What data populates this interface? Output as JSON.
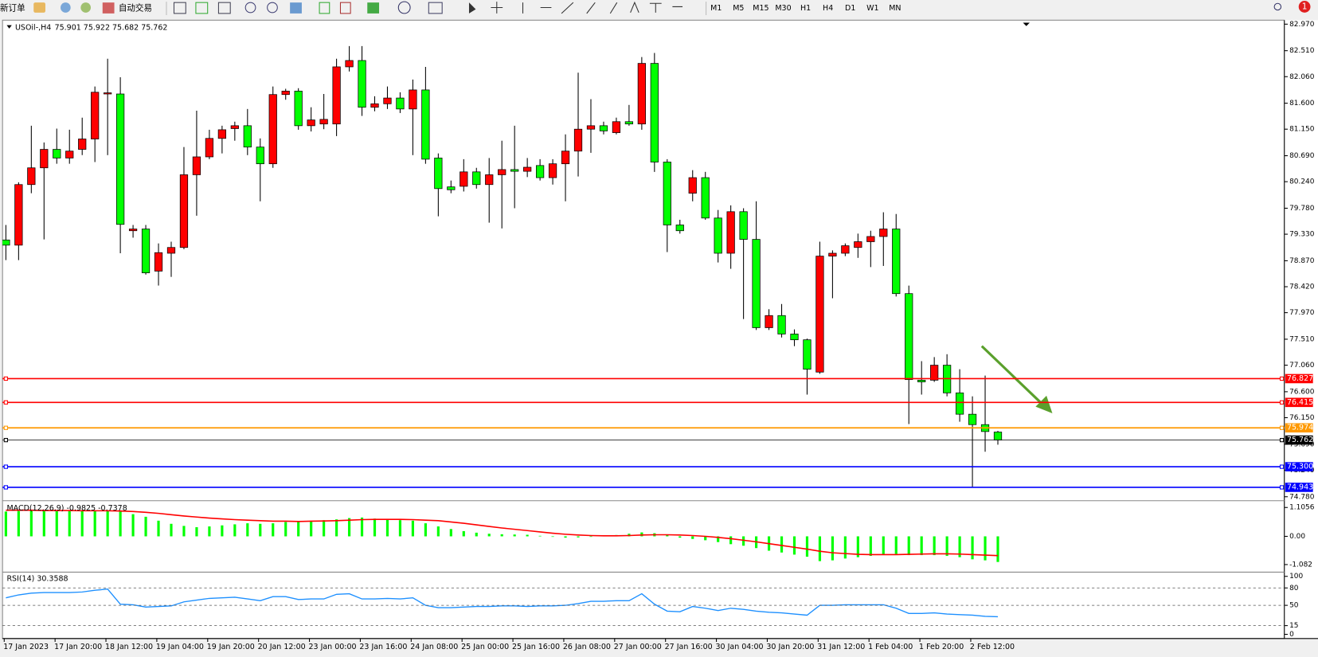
{
  "toolbar": {
    "new_order": "新订单",
    "auto_trading": "自动交易",
    "timeframes": [
      "M1",
      "M5",
      "M15",
      "M30",
      "H1",
      "H4",
      "D1",
      "W1",
      "MN"
    ],
    "badge": "1"
  },
  "chart_data": [
    {
      "type": "candlestick",
      "title": "USOil-,H4",
      "subtitle": "75.901 75.922 75.682 75.762",
      "up_color": "#ff0000",
      "down_color": "#00ff00",
      "categories": [
        "17 Jan 2023",
        null,
        null,
        null,
        "17 Jan 20:00",
        null,
        null,
        null,
        "18 Jan 12:00",
        null,
        null,
        null,
        "19 Jan 04:00",
        null,
        null,
        null,
        "19 Jan 20:00",
        null,
        null,
        null,
        "20 Jan 12:00",
        null,
        null,
        null,
        "23 Jan 00:00",
        null,
        null,
        null,
        "23 Jan 16:00",
        null,
        null,
        null,
        "24 Jan 08:00",
        null,
        null,
        null,
        "25 Jan 00:00",
        null,
        null,
        null,
        "25 Jan 16:00",
        null,
        null,
        null,
        "26 Jan 08:00",
        null,
        null,
        null,
        "27 Jan 00:00",
        null,
        null,
        null,
        "27 Jan 16:00",
        null,
        null,
        null,
        "30 Jan 04:00",
        null,
        null,
        null,
        "30 Jan 20:00",
        null,
        null,
        null,
        "31 Jan 12:00",
        null,
        null,
        null,
        "1 Feb 04:00",
        null,
        null,
        null,
        "1 Feb 20:00",
        null,
        null,
        null,
        "2 Feb 12:00",
        null,
        null
      ],
      "open": [
        79.23,
        79.14,
        80.19,
        80.48,
        80.8,
        80.65,
        80.8,
        80.98,
        81.76,
        81.76,
        79.39,
        79.42,
        78.69,
        79.0,
        79.1,
        80.36,
        80.67,
        80.99,
        81.16,
        81.21,
        80.84,
        80.55,
        81.75,
        81.81,
        81.21,
        81.24,
        81.24,
        82.23,
        82.34,
        81.53,
        81.59,
        81.69,
        81.5,
        81.83,
        80.65,
        80.15,
        80.16,
        80.41,
        80.19,
        80.36,
        80.45,
        80.42,
        80.52,
        80.31,
        80.55,
        80.77,
        81.15,
        81.21,
        81.09,
        81.28,
        81.24,
        82.29,
        80.58,
        79.49,
        80.04,
        80.31,
        79.61,
        79.0,
        79.72,
        79.24,
        77.71,
        77.92,
        77.6,
        77.5,
        76.94,
        78.95,
        79.0,
        79.1,
        79.2,
        79.29,
        79.42,
        78.3,
        76.8,
        76.8,
        77.06,
        76.58,
        76.21,
        76.03,
        75.901
      ],
      "high": [
        79.49,
        80.23,
        81.21,
        80.92,
        81.16,
        81.14,
        81.35,
        81.89,
        82.37,
        82.05,
        79.49,
        79.49,
        79.17,
        79.2,
        80.84,
        81.47,
        81.14,
        81.21,
        81.28,
        81.5,
        80.99,
        81.89,
        81.85,
        81.86,
        81.53,
        81.76,
        82.37,
        82.59,
        82.59,
        81.72,
        81.89,
        81.79,
        82.01,
        82.23,
        80.73,
        80.26,
        80.63,
        80.48,
        80.65,
        80.95,
        81.21,
        80.65,
        80.63,
        80.63,
        81.06,
        82.13,
        81.67,
        81.28,
        81.35,
        81.57,
        82.4,
        82.47,
        80.63,
        79.58,
        80.44,
        80.41,
        79.75,
        79.83,
        79.78,
        79.9,
        78.03,
        78.12,
        77.68,
        77.52,
        79.2,
        79.05,
        79.17,
        79.34,
        79.39,
        79.71,
        79.68,
        78.44,
        77.13,
        77.2,
        77.25,
        76.99,
        76.52,
        76.88,
        75.922
      ],
      "low": [
        78.88,
        78.88,
        80.04,
        79.24,
        80.55,
        80.55,
        80.7,
        80.58,
        80.7,
        79.0,
        79.27,
        78.63,
        78.44,
        78.59,
        79.07,
        79.65,
        80.63,
        80.73,
        80.95,
        80.7,
        79.9,
        80.48,
        81.66,
        81.14,
        81.11,
        81.15,
        81.03,
        82.15,
        81.38,
        81.46,
        81.5,
        81.43,
        80.7,
        80.55,
        79.64,
        80.04,
        80.07,
        80.12,
        79.53,
        79.43,
        79.78,
        80.32,
        80.26,
        80.19,
        79.9,
        80.33,
        80.74,
        81.06,
        81.06,
        81.21,
        81.14,
        80.41,
        79.02,
        79.34,
        79.9,
        79.58,
        78.84,
        78.73,
        77.86,
        77.67,
        77.67,
        77.54,
        77.39,
        76.55,
        76.91,
        78.22,
        78.95,
        78.92,
        78.76,
        78.78,
        78.25,
        76.04,
        76.55,
        76.77,
        76.52,
        76.08,
        74.95,
        75.56,
        75.682
      ],
      "close": [
        79.14,
        80.19,
        80.48,
        80.8,
        80.65,
        80.77,
        80.98,
        81.79,
        81.78,
        79.5,
        79.42,
        78.66,
        79.01,
        79.1,
        80.36,
        80.67,
        80.99,
        81.14,
        81.21,
        80.84,
        80.55,
        81.75,
        81.81,
        81.21,
        81.31,
        81.32,
        82.23,
        82.34,
        81.53,
        81.59,
        81.69,
        81.5,
        81.83,
        80.63,
        80.12,
        80.1,
        80.41,
        80.19,
        80.36,
        80.45,
        80.42,
        80.49,
        80.31,
        80.55,
        80.77,
        81.15,
        81.21,
        81.12,
        81.28,
        81.24,
        82.29,
        80.58,
        79.49,
        79.39,
        80.31,
        79.61,
        79.0,
        79.72,
        79.24,
        77.71,
        77.92,
        77.6,
        77.5,
        76.99,
        78.95,
        79.0,
        79.13,
        79.2,
        79.29,
        79.42,
        78.3,
        76.81,
        76.77,
        77.06,
        76.58,
        76.21,
        76.03,
        75.91,
        75.762
      ],
      "ylim": [
        74.74,
        83.01
      ],
      "yticks": [
        {
          "value": 82.97,
          "label": "82.970"
        },
        {
          "value": 82.51,
          "label": "82.510"
        },
        {
          "value": 82.06,
          "label": "82.060"
        },
        {
          "value": 81.6,
          "label": "81.600"
        },
        {
          "value": 81.15,
          "label": "81.150"
        },
        {
          "value": 80.69,
          "label": "80.690"
        },
        {
          "value": 80.24,
          "label": "80.240"
        },
        {
          "value": 79.78,
          "label": "79.780"
        },
        {
          "value": 79.33,
          "label": "79.330"
        },
        {
          "value": 78.87,
          "label": "78.870"
        },
        {
          "value": 78.42,
          "label": "78.420"
        },
        {
          "value": 77.97,
          "label": "77.970"
        },
        {
          "value": 77.51,
          "label": "77.510"
        },
        {
          "value": 77.06,
          "label": "77.060"
        },
        {
          "value": 76.6,
          "label": "76.600"
        },
        {
          "value": 76.15,
          "label": "76.150"
        },
        {
          "value": 75.69,
          "label": "75.690"
        },
        {
          "value": 75.24,
          "label": "75.240"
        },
        {
          "value": 74.78,
          "label": "74.780"
        }
      ],
      "levels": [
        {
          "value": 76.827,
          "color": "#ff0000"
        },
        {
          "value": 76.415,
          "color": "#ff0000"
        },
        {
          "value": 75.974,
          "color": "#ff9900"
        },
        {
          "value": 75.762,
          "color": "#000000"
        },
        {
          "value": 75.3,
          "label": "75.300",
          "color": "#0000ff"
        },
        {
          "value": 74.943,
          "color": "#0000ff"
        }
      ]
    },
    {
      "type": "macd",
      "title": "MACD(12,26,9) -0.9825 -0.7378",
      "ylim": [
        -1.34,
        1.3
      ],
      "yticks": [
        1.1056,
        {
          "value": 0,
          "label": "0.00"
        },
        -1.082
      ],
      "series": [
        {
          "style": "bar",
          "color": "#00ff00",
          "values": [
            0.95,
            0.97,
            0.98,
            0.98,
            0.97,
            0.97,
            0.97,
            0.98,
            0.98,
            0.95,
            0.85,
            0.75,
            0.6,
            0.48,
            0.4,
            0.35,
            0.38,
            0.42,
            0.46,
            0.5,
            0.48,
            0.5,
            0.55,
            0.58,
            0.6,
            0.62,
            0.65,
            0.7,
            0.72,
            0.68,
            0.66,
            0.62,
            0.6,
            0.5,
            0.38,
            0.28,
            0.2,
            0.14,
            0.1,
            0.08,
            0.07,
            0.06,
            0.02,
            -0.02,
            -0.05,
            -0.04,
            -0.02,
            0.02,
            0.05,
            0.1,
            0.15,
            0.12,
            0.05,
            -0.05,
            -0.1,
            -0.15,
            -0.22,
            -0.3,
            -0.36,
            -0.45,
            -0.55,
            -0.62,
            -0.7,
            -0.78,
            -0.95,
            -0.92,
            -0.85,
            -0.8,
            -0.75,
            -0.7,
            -0.68,
            -0.72,
            -0.72,
            -0.72,
            -0.75,
            -0.8,
            -0.88,
            -0.92,
            -0.9825
          ]
        },
        {
          "style": "line",
          "color": "#ff0000",
          "values": [
            1.0,
            1.0,
            1.0,
            0.99,
            0.99,
            0.99,
            0.98,
            0.98,
            0.98,
            0.97,
            0.95,
            0.92,
            0.88,
            0.83,
            0.78,
            0.74,
            0.7,
            0.67,
            0.64,
            0.62,
            0.6,
            0.58,
            0.58,
            0.57,
            0.58,
            0.59,
            0.6,
            0.62,
            0.64,
            0.65,
            0.65,
            0.65,
            0.64,
            0.62,
            0.6,
            0.55,
            0.5,
            0.44,
            0.38,
            0.32,
            0.27,
            0.22,
            0.17,
            0.12,
            0.08,
            0.05,
            0.03,
            0.02,
            0.02,
            0.03,
            0.05,
            0.06,
            0.06,
            0.05,
            0.03,
            0.0,
            -0.04,
            -0.09,
            -0.15,
            -0.21,
            -0.28,
            -0.35,
            -0.42,
            -0.49,
            -0.57,
            -0.63,
            -0.66,
            -0.69,
            -0.7,
            -0.7,
            -0.7,
            -0.69,
            -0.68,
            -0.67,
            -0.67,
            -0.68,
            -0.7,
            -0.72,
            -0.7378
          ]
        }
      ]
    },
    {
      "type": "line",
      "title": "RSI(14) 30.3588",
      "color": "#1e90ff",
      "ylim": [
        0,
        100
      ],
      "yticks": [
        100,
        80,
        50,
        15,
        0
      ],
      "levels": [
        80,
        50,
        15
      ],
      "values": [
        63,
        68,
        71,
        72,
        72,
        72,
        73,
        76,
        78,
        52,
        51,
        47,
        48,
        49,
        56,
        59,
        62,
        63,
        64,
        61,
        58,
        65,
        65,
        60,
        61,
        61,
        69,
        70,
        61,
        61,
        62,
        61,
        63,
        50,
        46,
        46,
        47,
        48,
        48,
        49,
        49,
        48,
        49,
        49,
        50,
        53,
        57,
        57,
        58,
        58,
        70,
        52,
        40,
        39,
        48,
        45,
        41,
        45,
        43,
        40,
        38,
        37,
        35,
        33,
        50,
        50,
        51,
        51,
        51,
        51,
        45,
        36,
        36,
        37,
        35,
        34,
        33,
        31,
        30.3588
      ]
    }
  ]
}
